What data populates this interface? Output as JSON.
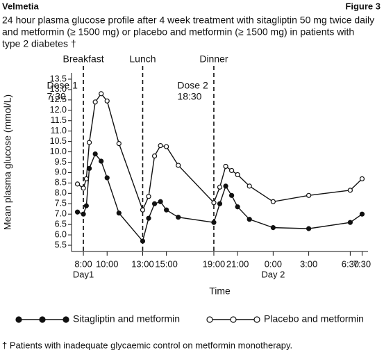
{
  "header": {
    "left": "Velmetia",
    "right": "Figure 3"
  },
  "chart_data": {
    "type": "line",
    "title": [
      "24 hour plasma glucose profile after 4 week treatment with sitagliptin 50 mg twice daily",
      "and metformin (≥ 1500 mg) or placebo and metformin (≥ 1500 mg) in patients with",
      "type 2 diabetes †"
    ],
    "x_label": "Time",
    "y_label": "Mean plasma glucose (mmol/L)",
    "x": [
      7.5,
      8,
      8.25,
      8.5,
      9,
      9.5,
      10,
      11,
      13,
      13.5,
      14,
      14.5,
      15,
      16,
      19,
      19.5,
      20,
      20.5,
      21,
      22,
      24,
      27,
      30.5,
      31.5
    ],
    "series": [
      {
        "name": "Sitagliptin and metformin",
        "color": "#111111",
        "marker": "filled",
        "values": [
          7.1,
          7.0,
          7.4,
          9.2,
          9.9,
          9.55,
          8.75,
          7.05,
          5.7,
          6.8,
          7.5,
          7.6,
          7.2,
          6.85,
          6.6,
          7.5,
          8.35,
          7.9,
          7.35,
          6.75,
          6.35,
          6.3,
          6.6,
          7.0
        ]
      },
      {
        "name": "Placebo and metformin",
        "color": "#111111",
        "marker": "open",
        "values": [
          8.45,
          8.25,
          8.7,
          10.45,
          12.4,
          12.8,
          12.45,
          10.4,
          7.2,
          7.85,
          9.8,
          10.3,
          10.25,
          9.35,
          7.55,
          8.3,
          9.3,
          9.1,
          8.9,
          8.35,
          7.6,
          7.9,
          8.15,
          8.7
        ]
      }
    ],
    "xlim": [
      7,
      32
    ],
    "ylim": [
      5.2,
      13.8
    ],
    "xticks": [
      {
        "value": 8,
        "label": "8:00"
      },
      {
        "value": 10,
        "label": "10:00"
      },
      {
        "value": 13,
        "label": "13:00"
      },
      {
        "value": 15,
        "label": "15:00"
      },
      {
        "value": 19,
        "label": "19:00"
      },
      {
        "value": 21,
        "label": "21:00"
      },
      {
        "value": 24,
        "label": "0:00"
      },
      {
        "value": 27,
        "label": "3:00"
      },
      {
        "value": 30.5,
        "label": "6:30"
      },
      {
        "value": 31.5,
        "label": "7:30"
      }
    ],
    "yticks": [
      5.5,
      {
        "value": 6,
        "label": "6.0"
      },
      6.5,
      {
        "value": 7,
        "label": "7.0"
      },
      7.5,
      {
        "value": 8,
        "label": "8.0"
      },
      8.5,
      {
        "value": 9,
        "label": "9.0"
      },
      9.5,
      {
        "value": 10,
        "label": "10.0"
      },
      10.5,
      {
        "value": 11,
        "label": "11.0"
      },
      11.5,
      {
        "value": 12,
        "label": "12.0"
      },
      12.5,
      {
        "value": 13,
        "label": "13.0"
      },
      13.5
    ],
    "events": [
      {
        "x": 8,
        "label": "Breakfast"
      },
      {
        "x": 13,
        "label": "Lunch"
      },
      {
        "x": 19,
        "label": "Dinner"
      }
    ],
    "doses": [
      {
        "x": 7.5,
        "lines": [
          "Dose 1",
          "7:30"
        ]
      },
      {
        "x": 18.5,
        "lines": [
          "Dose 2",
          "18:30"
        ]
      }
    ],
    "days": [
      {
        "x": 8,
        "label": "Day1"
      },
      {
        "x": 24,
        "label": "Day 2"
      }
    ]
  },
  "footnote": "† Patients with inadequate glycaemic control on metformin monotherapy."
}
